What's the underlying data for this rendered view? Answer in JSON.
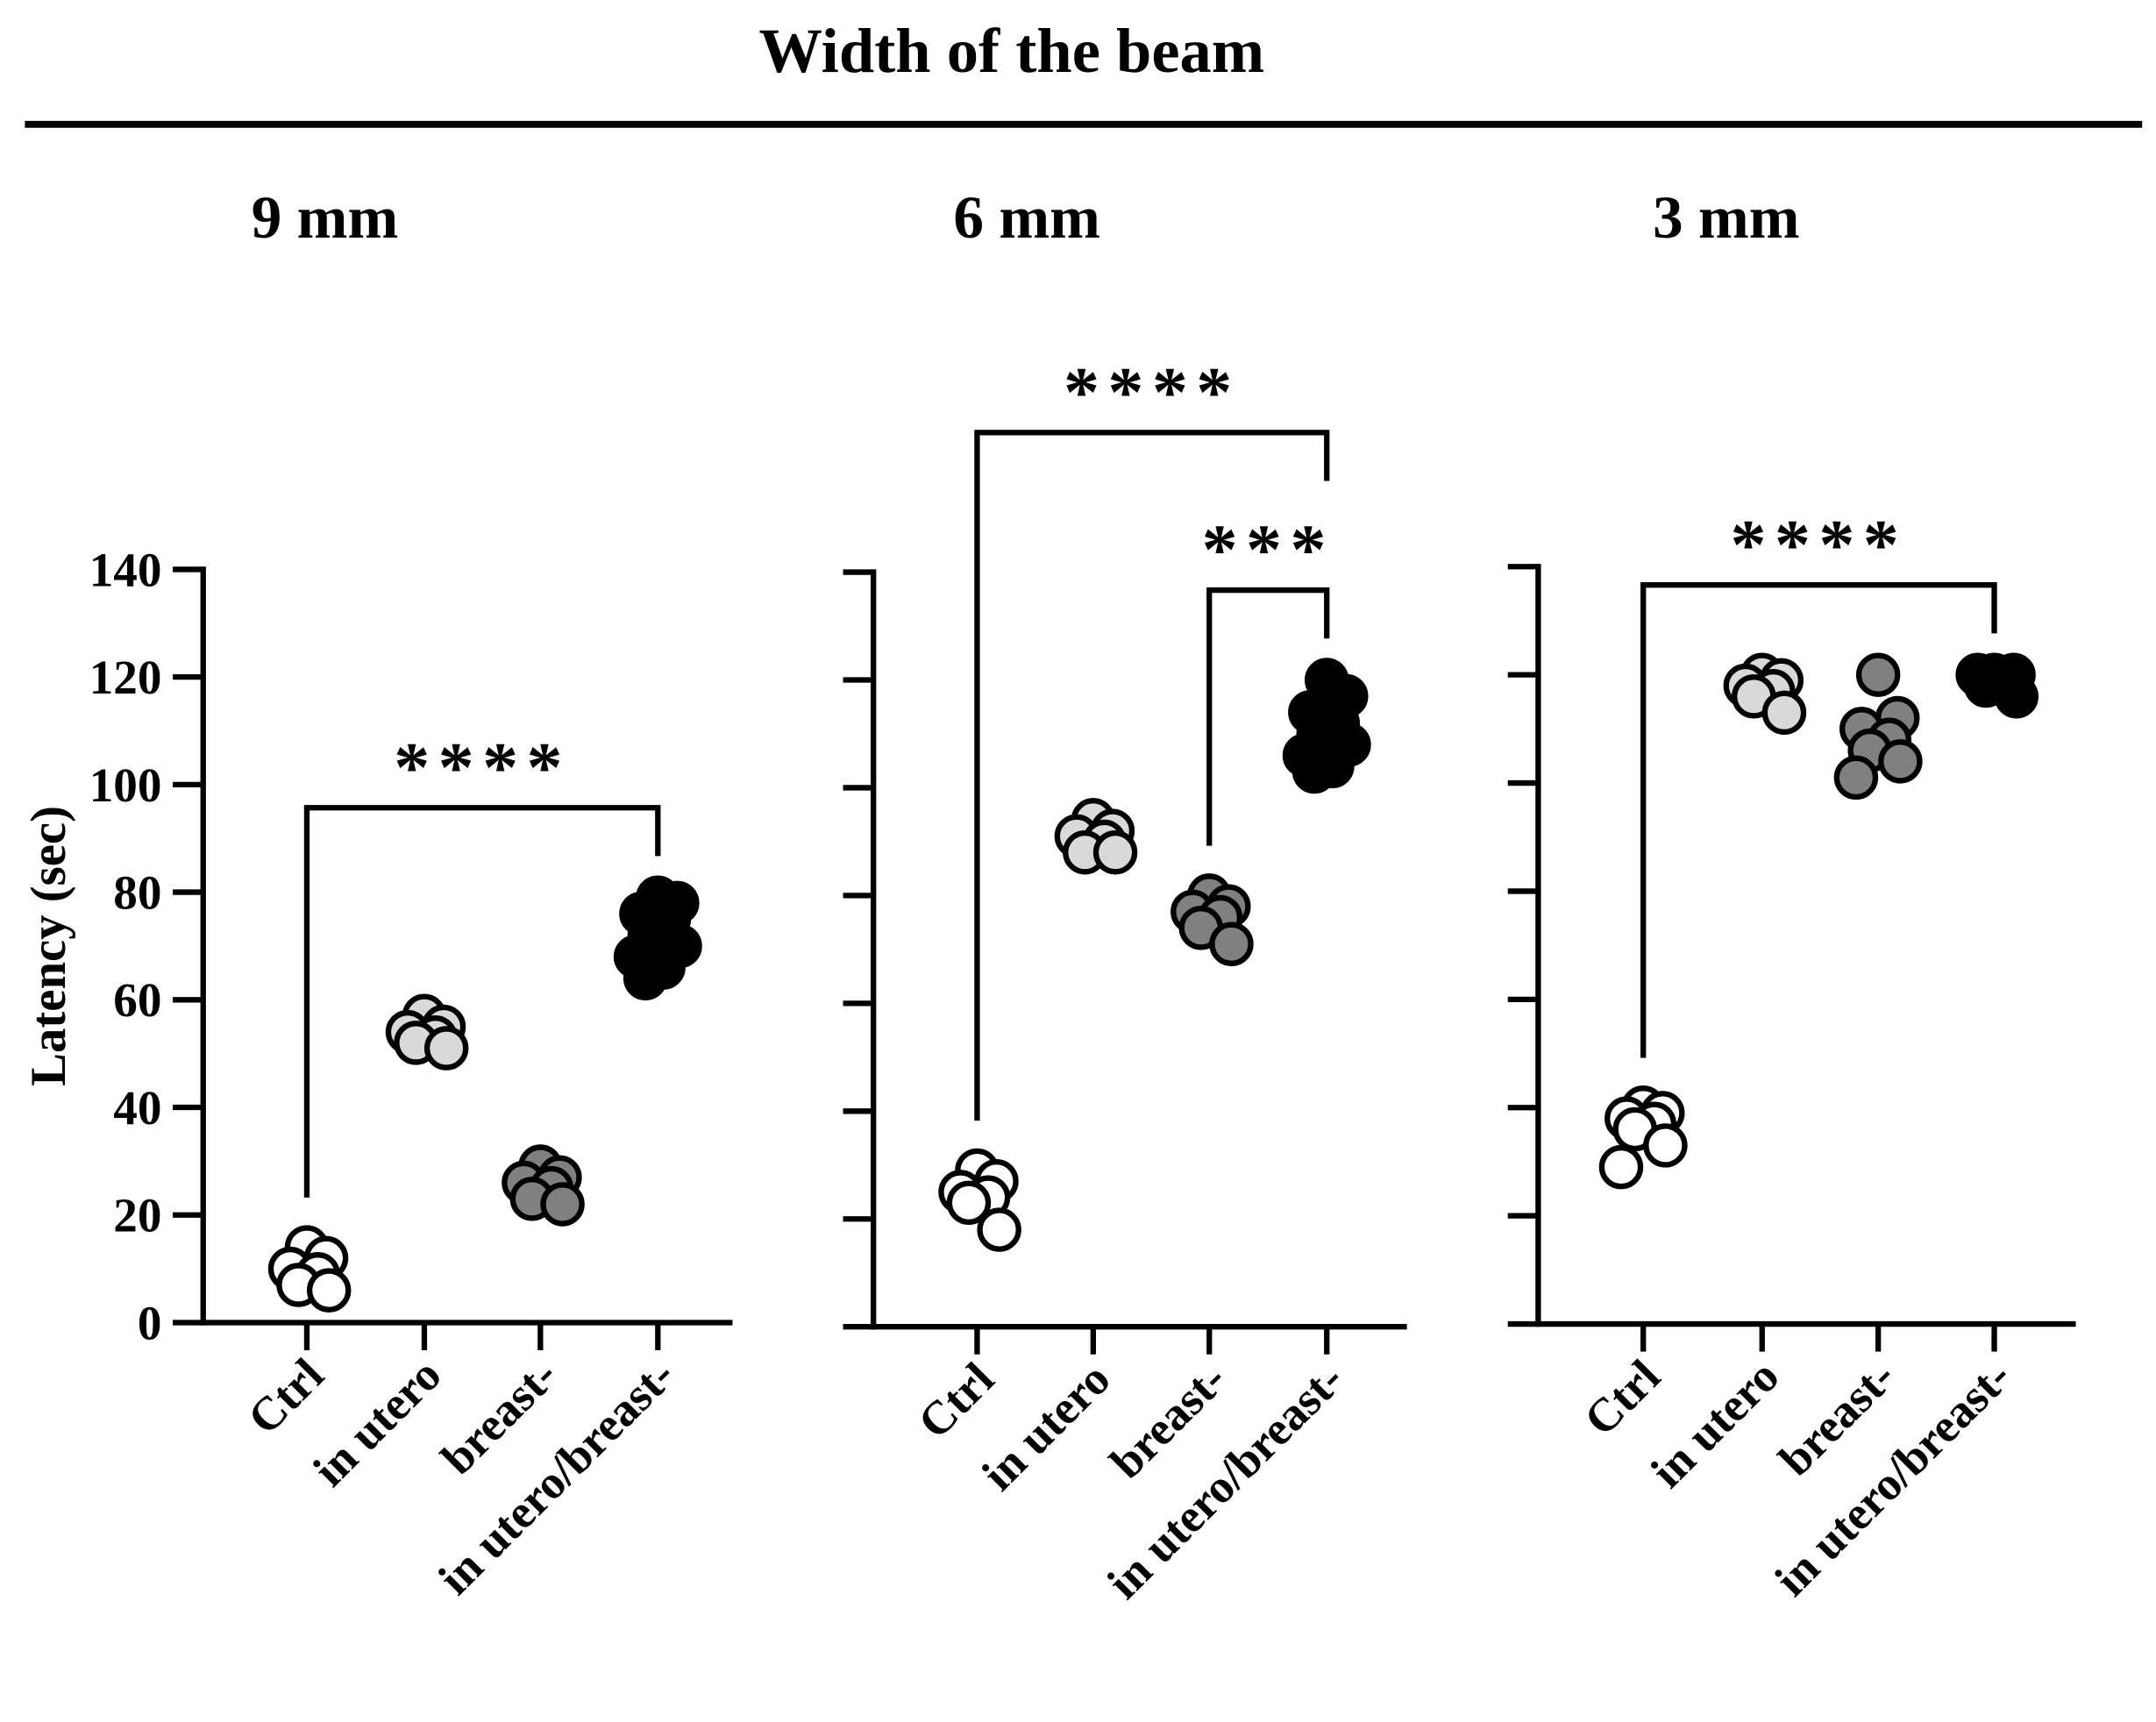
{
  "header": {
    "title": "Width of the beam"
  },
  "chart_data": [
    {
      "type": "strip",
      "title": "9 mm",
      "ylabel": "Latency (sec)",
      "ylim": [
        0,
        140
      ],
      "yticks": [
        0,
        20,
        40,
        60,
        80,
        100,
        120,
        140
      ],
      "ytick_labels": true,
      "categories": [
        "Ctrl",
        "in utero",
        "breast-",
        "in utero/breast-"
      ],
      "colors": [
        "#ffffff",
        "#d9d9d9",
        "#808080",
        "#000000"
      ],
      "values": [
        [
          14,
          12,
          10,
          9,
          7,
          6
        ],
        [
          57,
          55,
          54,
          53,
          52,
          51
        ],
        [
          29,
          27,
          26,
          25,
          23,
          22
        ],
        [
          79,
          78,
          76,
          75,
          72,
          70,
          68,
          66,
          64
        ]
      ],
      "brackets": [
        {
          "from": 0,
          "to": 3,
          "text": "****"
        }
      ]
    },
    {
      "type": "strip",
      "title": "6 mm",
      "ylim": [
        0,
        140
      ],
      "yticks": [
        0,
        20,
        40,
        60,
        80,
        100,
        120,
        140
      ],
      "ytick_labels": false,
      "categories": [
        "Ctrl",
        "in utero",
        "breast-",
        "in utero/breast-"
      ],
      "colors": [
        "#ffffff",
        "#d9d9d9",
        "#808080",
        "#000000"
      ],
      "values": [
        [
          29,
          27,
          25,
          24,
          23,
          18
        ],
        [
          94,
          92,
          91,
          90,
          88,
          88
        ],
        [
          80,
          78,
          77,
          76,
          74,
          71
        ],
        [
          120,
          117,
          114,
          112,
          110,
          108,
          106,
          104,
          103
        ]
      ],
      "brackets": [
        {
          "from": 0,
          "to": 3,
          "text": "****"
        },
        {
          "from": 2,
          "to": 3,
          "text": "***"
        }
      ]
    },
    {
      "type": "strip",
      "title": "3 mm",
      "ylim": [
        0,
        140
      ],
      "yticks": [
        0,
        20,
        40,
        60,
        80,
        100,
        120,
        140
      ],
      "ytick_labels": false,
      "categories": [
        "Ctrl",
        "in utero",
        "breast-",
        "in utero/breast-"
      ],
      "colors": [
        "#ffffff",
        "#d9d9d9",
        "#808080",
        "#000000"
      ],
      "values": [
        [
          40,
          39,
          38,
          37,
          36,
          33,
          29
        ],
        [
          120,
          119,
          118,
          117,
          116,
          113
        ],
        [
          120,
          112,
          110,
          108,
          106,
          104,
          101
        ],
        [
          120,
          120,
          120,
          119,
          118,
          116
        ]
      ],
      "brackets": [
        {
          "from": 0,
          "to": 3,
          "text": "****"
        }
      ]
    }
  ]
}
